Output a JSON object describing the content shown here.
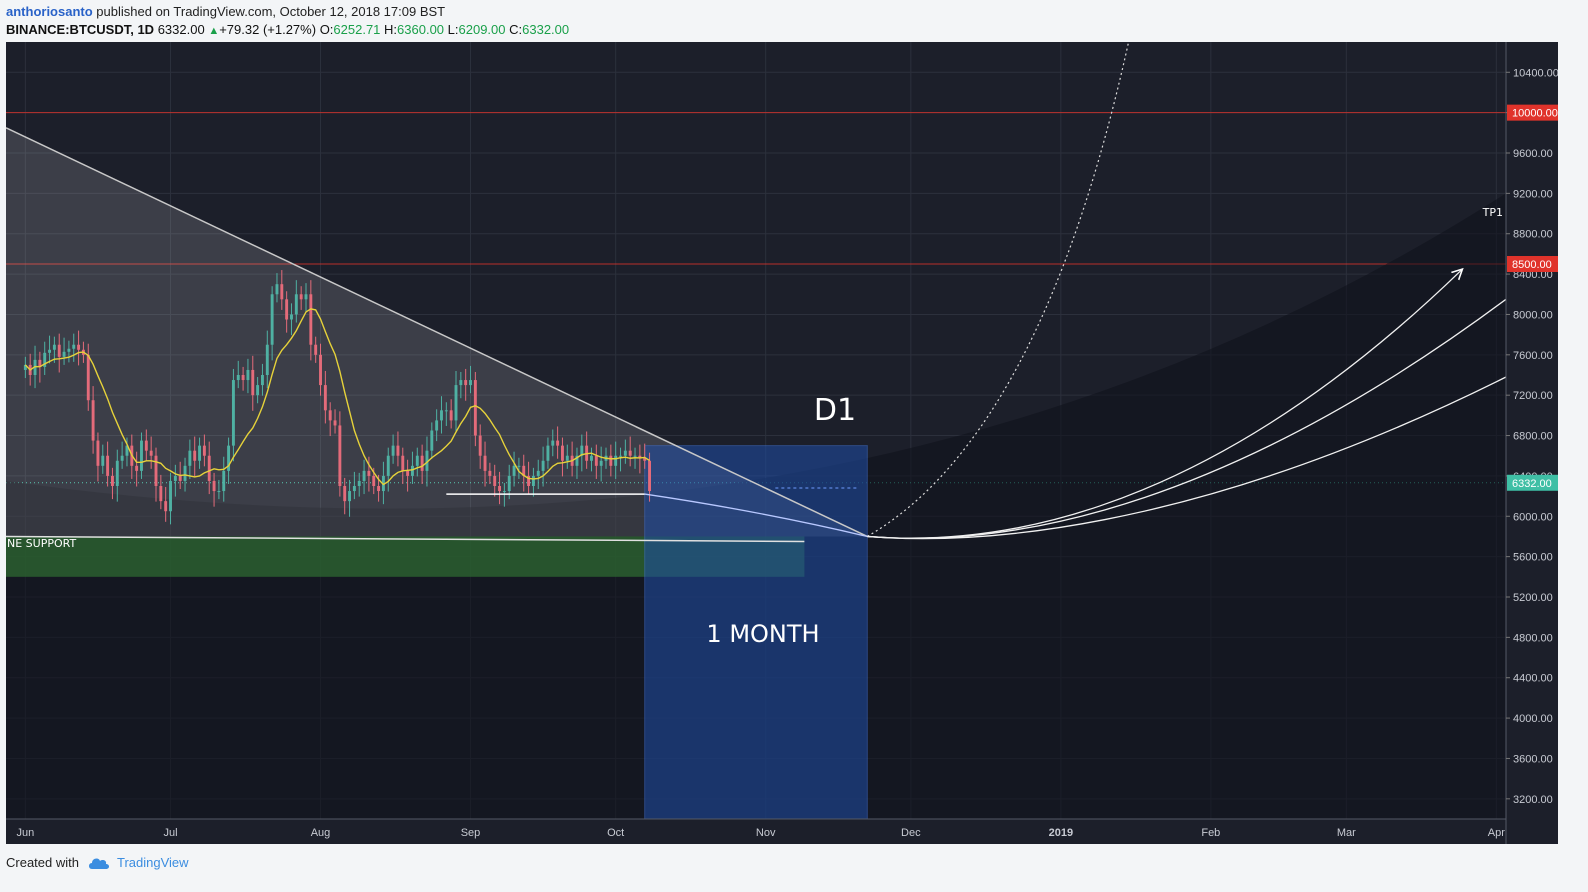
{
  "header": {
    "author": "anthoriosanto",
    "published": "published on TradingView.com, October 12, 2018 17:09 BST",
    "symbol": "BINANCE:BTCUSDT, 1D",
    "last": "6332.00",
    "change": "+79.32 (+1.27%)",
    "o_label": "O:",
    "o_value": "6252.71",
    "h_label": "H:",
    "h_value": "6360.00",
    "l_label": "L:",
    "l_value": "6209.00",
    "c_label": "C:",
    "c_value": "6332.00"
  },
  "footer": {
    "created_with": "Created with",
    "brand": "TradingView"
  },
  "colors": {
    "background": "#1c1f2a",
    "grid": "#2c303c",
    "up": "#4fb1a3",
    "down": "#e46b7a",
    "ma": "#e6d23a",
    "resistance_price": "#e0332b",
    "last_price": "#3fbfa5",
    "box": "#1f4ea8",
    "support_zone": "#2e6a32"
  },
  "annotations": {
    "d1": "D1",
    "month": "1 MONTH",
    "tp1": "TP1",
    "support": "NE SUPPORT"
  },
  "chart_data": {
    "type": "candlestick",
    "x_unit": "days since 2018-06-01",
    "x_tick_labels": [
      {
        "label": "Jun",
        "x": 0
      },
      {
        "label": "Jul",
        "x": 30
      },
      {
        "label": "Aug",
        "x": 61
      },
      {
        "label": "Sep",
        "x": 92
      },
      {
        "label": "Oct",
        "x": 122
      },
      {
        "label": "Nov",
        "x": 153
      },
      {
        "label": "Dec",
        "x": 183
      },
      {
        "label": "2019",
        "x": 214
      },
      {
        "label": "Feb",
        "x": 245
      },
      {
        "label": "Mar",
        "x": 273
      },
      {
        "label": "Apr",
        "x": 304
      }
    ],
    "x_range": [
      -4,
      306
    ],
    "y_range": [
      3000,
      10700
    ],
    "y_ticks": [
      3200,
      3600,
      4000,
      4400,
      4800,
      5200,
      5600,
      6000,
      6400,
      6800,
      7200,
      7600,
      8000,
      8400,
      8800,
      9200,
      9600,
      10000,
      10400
    ],
    "y_tick_labels": [
      "3200.00",
      "3600.00",
      "4000.00",
      "4400.00",
      "4800.00",
      "5200.00",
      "5600.00",
      "6000.00",
      "6400.00",
      "6800.00",
      "7200.00",
      "7600.00",
      "8000.00",
      "8400.00",
      "8800.00",
      "9200.00",
      "9600.00",
      "10000.00",
      "10400.00"
    ],
    "price_tags": [
      {
        "label": "10000.00",
        "value": 10000,
        "kind": "level"
      },
      {
        "label": "8500.00",
        "value": 8500,
        "kind": "level"
      },
      {
        "label": "6332.00",
        "value": 6332,
        "kind": "last"
      }
    ],
    "closes": [
      7500,
      7400,
      7550,
      7480,
      7620,
      7650,
      7700,
      7580,
      7630,
      7660,
      7700,
      7650,
      7600,
      7150,
      6750,
      6500,
      6600,
      6400,
      6300,
      6550,
      6600,
      6700,
      6500,
      6450,
      6750,
      6650,
      6600,
      6300,
      6150,
      6050,
      6350,
      6400,
      6350,
      6500,
      6650,
      6550,
      6700,
      6600,
      6350,
      6250,
      6250,
      6450,
      6700,
      7350,
      7400,
      7350,
      7450,
      7200,
      7300,
      7400,
      7700,
      8200,
      8300,
      8150,
      7950,
      8000,
      8200,
      8150,
      8200,
      7700,
      7600,
      7300,
      7050,
      6950,
      6900,
      6300,
      6150,
      6250,
      6300,
      6350,
      6450,
      6400,
      6300,
      6250,
      6400,
      6600,
      6700,
      6600,
      6450,
      6400,
      6500,
      6600,
      6450,
      6650,
      6850,
      6950,
      7050,
      7050,
      6950,
      7300,
      7350,
      7300,
      7350,
      6800,
      6600,
      6450,
      6400,
      6300,
      6250,
      6250,
      6400,
      6500,
      6500,
      6400,
      6300,
      6400,
      6450,
      6550,
      6700,
      6750,
      6700,
      6550,
      6600,
      6500,
      6600,
      6700,
      6550,
      6600,
      6500,
      6550,
      6600,
      6500,
      6600,
      6600,
      6650,
      6600,
      6600,
      6580,
      6550,
      6250
    ],
    "ma_period": 10,
    "overlay_values": {
      "descending_trendline": {
        "from": [
          -4,
          9850
        ],
        "to": [
          174,
          5800
        ]
      },
      "horizontal_support": {
        "from": [
          -4,
          5800
        ],
        "to": [
          161,
          5750
        ]
      },
      "local_low_line": {
        "from": [
          87,
          6220
        ],
        "to": [
          128,
          6220
        ]
      },
      "support_zone": {
        "x": [
          -4,
          161
        ],
        "y": [
          5400,
          5800
        ]
      },
      "time_box": {
        "x": [
          128,
          174
        ],
        "y": [
          3000,
          6700
        ]
      },
      "apex": [
        174,
        5800
      ],
      "tp_curves_end_y": [
        8450,
        8150,
        7380
      ],
      "tp_curves_end_x": [
        297,
        306,
        306
      ]
    }
  }
}
